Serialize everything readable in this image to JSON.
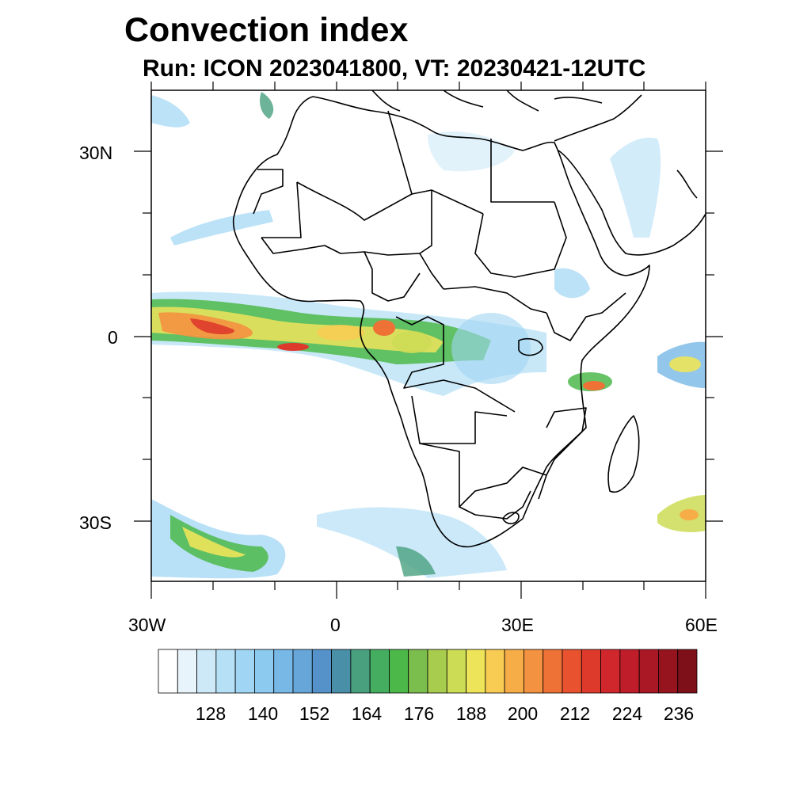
{
  "title": "Convection index",
  "subtitle": "Run: ICON 2023041800,  VT: 20230421-12UTC",
  "map": {
    "lon_range": [
      -30,
      60
    ],
    "lat_range": [
      -40,
      40
    ],
    "x_tick_labels": [
      "30W",
      "0",
      "30E",
      "60E"
    ],
    "y_tick_labels": [
      "30N",
      "0",
      "30S"
    ]
  },
  "colorbar": {
    "colors": [
      "#ffffff",
      "#e8f4fb",
      "#cde9f7",
      "#b6e0f6",
      "#a0d6f3",
      "#8ccaf0",
      "#78b8e6",
      "#67a6d9",
      "#5592c9",
      "#4a8fa8",
      "#48a07f",
      "#45ad60",
      "#4cb84a",
      "#7cbe4d",
      "#a8cc4e",
      "#ccdc55",
      "#eee45a",
      "#f8cc52",
      "#f7ad47",
      "#f39240",
      "#ee7136",
      "#e8522f",
      "#de3a2c",
      "#d0272c",
      "#bf1d2a",
      "#aa1825",
      "#95141d",
      "#7e101a"
    ],
    "tick_labels": [
      "128",
      "140",
      "152",
      "164",
      "176",
      "188",
      "200",
      "212",
      "224",
      "236"
    ],
    "tick_after_box_index": [
      2,
      5,
      8,
      11,
      14,
      17,
      20,
      23,
      26,
      29
    ]
  }
}
